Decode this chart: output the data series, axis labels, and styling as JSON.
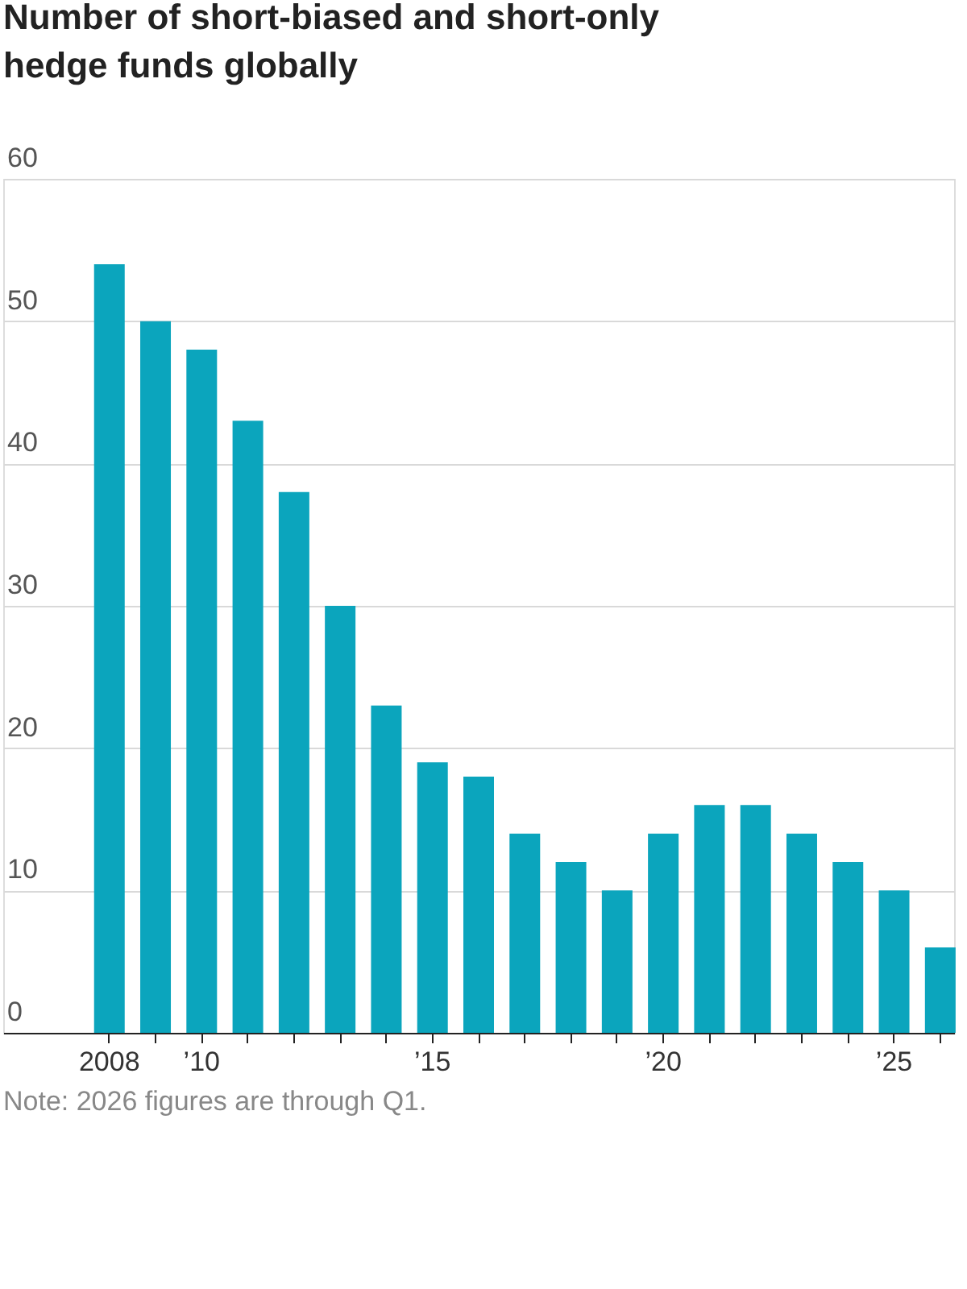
{
  "chart_data": {
    "type": "bar",
    "title": "Number of short-biased and short-only hedge funds globally",
    "categories": [
      "2008",
      null,
      "’10",
      null,
      null,
      null,
      null,
      "’15",
      null,
      null,
      null,
      null,
      "’20",
      null,
      null,
      null,
      null,
      "’25",
      null
    ],
    "values": [
      54,
      50,
      48,
      43,
      38,
      30,
      23,
      19,
      18,
      14,
      12,
      10,
      14,
      16,
      16,
      14,
      12,
      10,
      6
    ],
    "color": "#0ba5bd",
    "ylim": [
      0,
      60
    ],
    "yticks": [
      0,
      10,
      20,
      30,
      40,
      50,
      60
    ],
    "grid": "y",
    "annotations": [
      "Note: 2026 figures are through Q1."
    ]
  }
}
